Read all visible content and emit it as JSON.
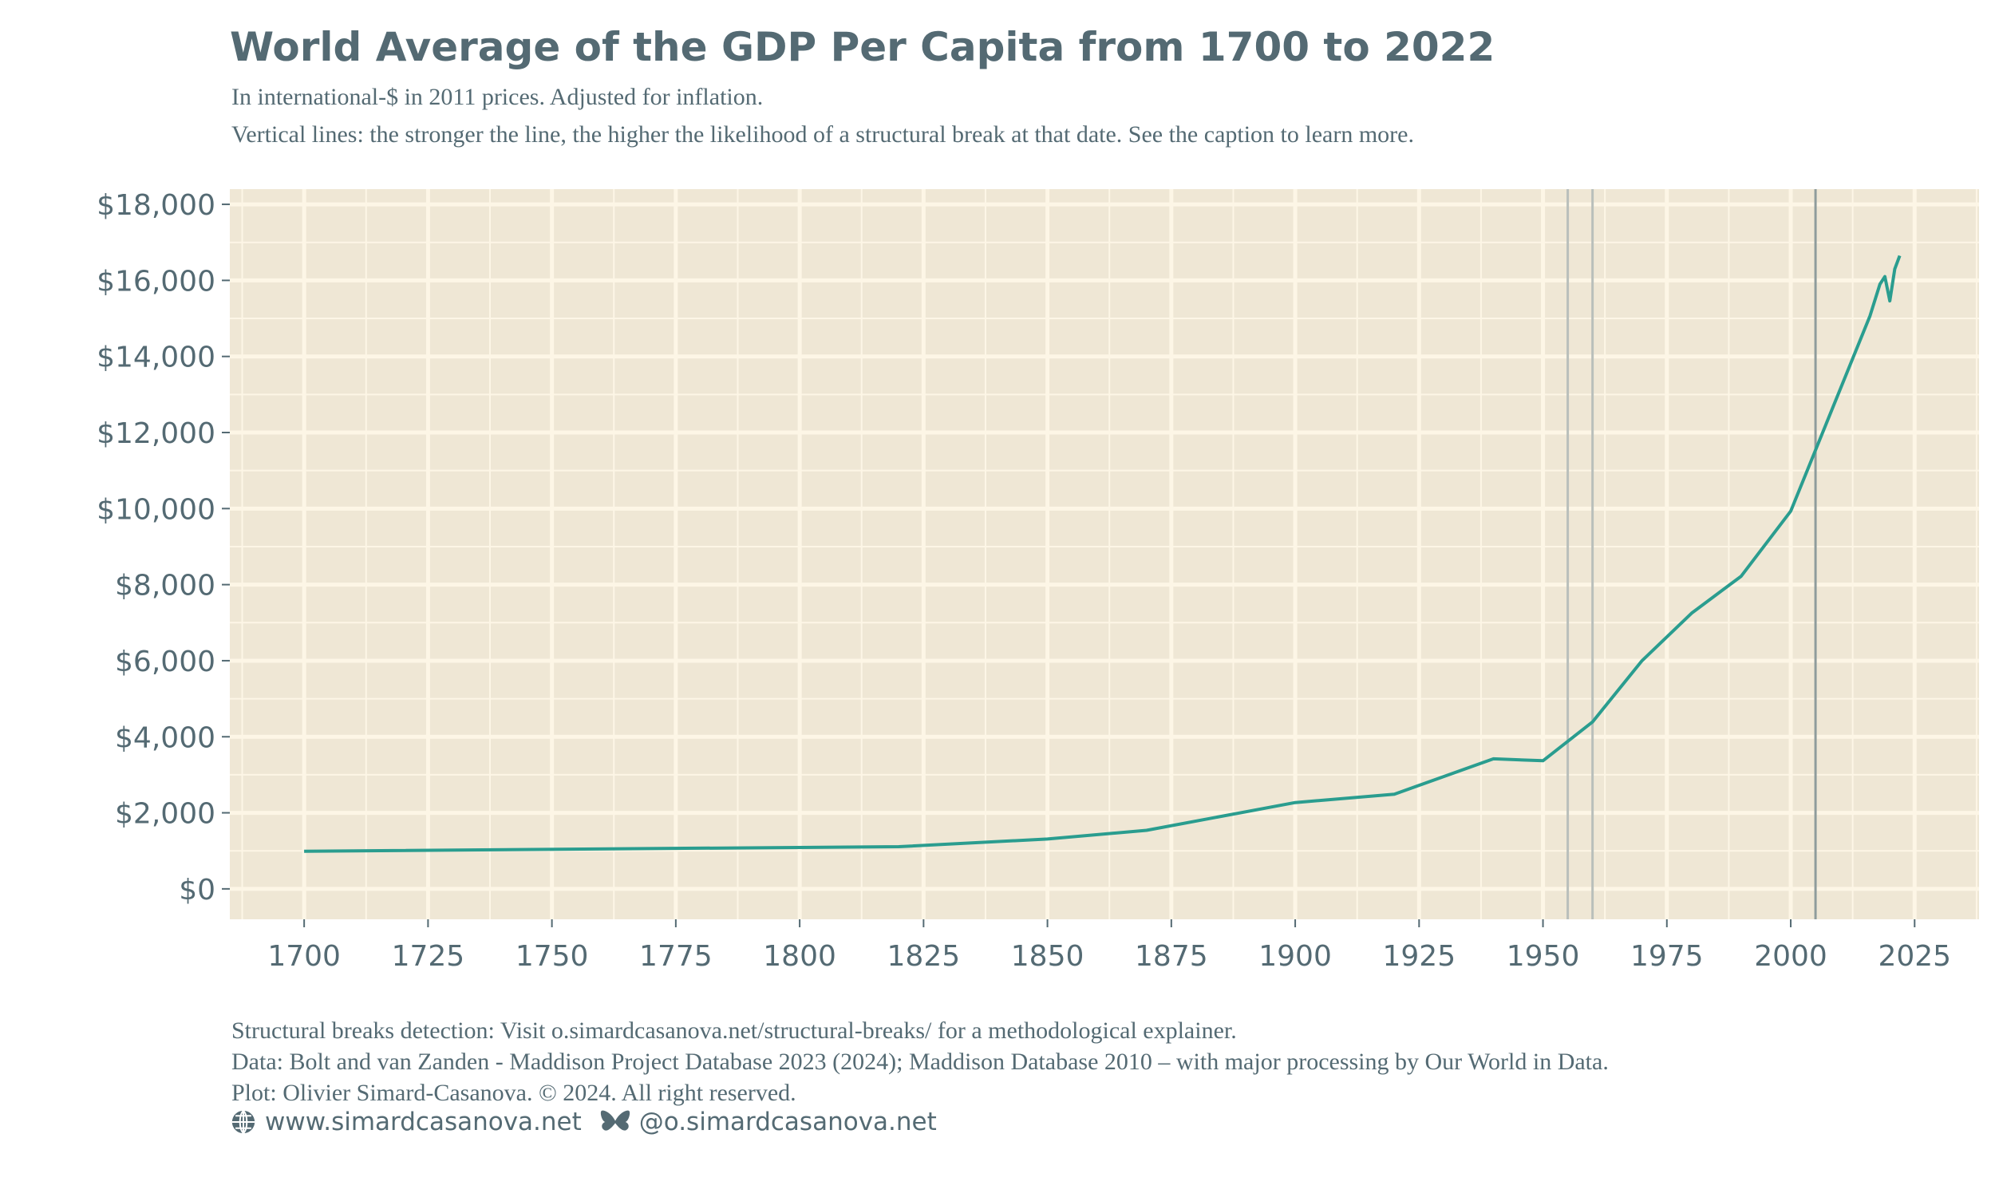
{
  "title": "World Average of the GDP Per Capita from 1700 to 2022",
  "subtitle_1": "In international-$ in 2011 prices. Adjusted for inflation.",
  "subtitle_2": "Vertical lines: the stronger the line, the higher the likelihood of a structural break at that date. See the caption to learn more.",
  "caption": [
    "Structural breaks detection: Visit o.simardcasanova.net/structural-breaks/ for a methodological explainer.",
    "Data: Bolt and van Zanden - Maddison Project Database 2023 (2024); Maddison Database 2010 – with major processing by Our World in Data.",
    "Plot: Olivier Simard-Casanova. © 2024.  All right reserved."
  ],
  "social": {
    "website": "www.simardcasanova.net",
    "website_icon": "globe-icon",
    "bluesky": "@o.simardcasanova.net",
    "bluesky_icon": "butterfly-icon"
  },
  "colors": {
    "line": "#2a9d8f",
    "panel": "#efe7d5",
    "grid": "#fdf6e6",
    "text": "#546a73",
    "break_strong": "#8f9c9c",
    "break_weak": "#b9bfbb"
  },
  "chart_data": {
    "type": "line",
    "title": "World Average of the GDP Per Capita from 1700 to 2022",
    "xlabel": "",
    "ylabel": "",
    "xlim": [
      1685,
      2038
    ],
    "ylim": [
      -800,
      18400
    ],
    "grid": true,
    "x_ticks": [
      1700,
      1725,
      1750,
      1775,
      1800,
      1825,
      1850,
      1875,
      1900,
      1925,
      1950,
      1975,
      2000,
      2025
    ],
    "y_ticks": [
      0,
      2000,
      4000,
      6000,
      8000,
      10000,
      12000,
      14000,
      16000,
      18000
    ],
    "y_tick_labels": [
      "$0",
      "$2,000",
      "$4,000",
      "$6,000",
      "$8,000",
      "$10,000",
      "$12,000",
      "$14,000",
      "$16,000",
      "$18,000"
    ],
    "series": [
      {
        "x": [
          1700,
          1820,
          1850,
          1870,
          1900,
          1920,
          1940,
          1950,
          1960,
          1970,
          1980,
          1990,
          2000,
          2016,
          2018,
          2019,
          2020,
          2021,
          2022
        ],
        "y": [
          990,
          1110,
          1310,
          1540,
          2270,
          2490,
          3420,
          3370,
          4390,
          6000,
          7250,
          8220,
          9930,
          15070,
          15900,
          16100,
          15460,
          16300,
          16650
        ]
      }
    ],
    "structural_breaks": [
      {
        "year": 1955,
        "strength": "weak"
      },
      {
        "year": 1960,
        "strength": "weak"
      },
      {
        "year": 2005,
        "strength": "strong"
      }
    ]
  }
}
